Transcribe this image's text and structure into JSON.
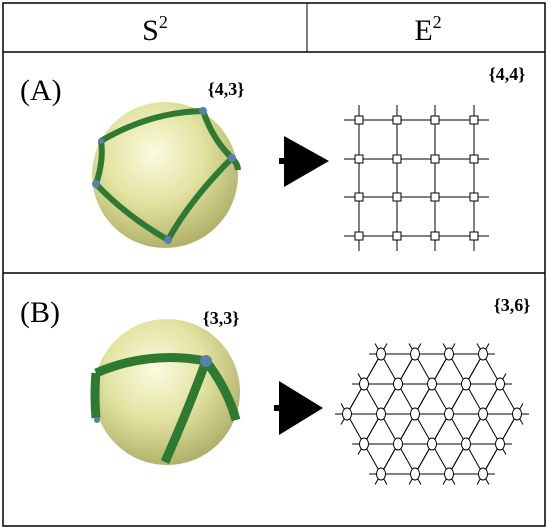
{
  "header": {
    "cells": [
      {
        "base": "S",
        "sup": "2"
      },
      {
        "base": "E",
        "sup": "2"
      }
    ]
  },
  "rows": [
    {
      "label": "(A)",
      "sphere_symbol": "{4,3}",
      "plane_symbol": "{4,4}"
    },
    {
      "label": "(B)",
      "sphere_symbol": "{3,3}",
      "plane_symbol": "{3,6}"
    }
  ]
}
